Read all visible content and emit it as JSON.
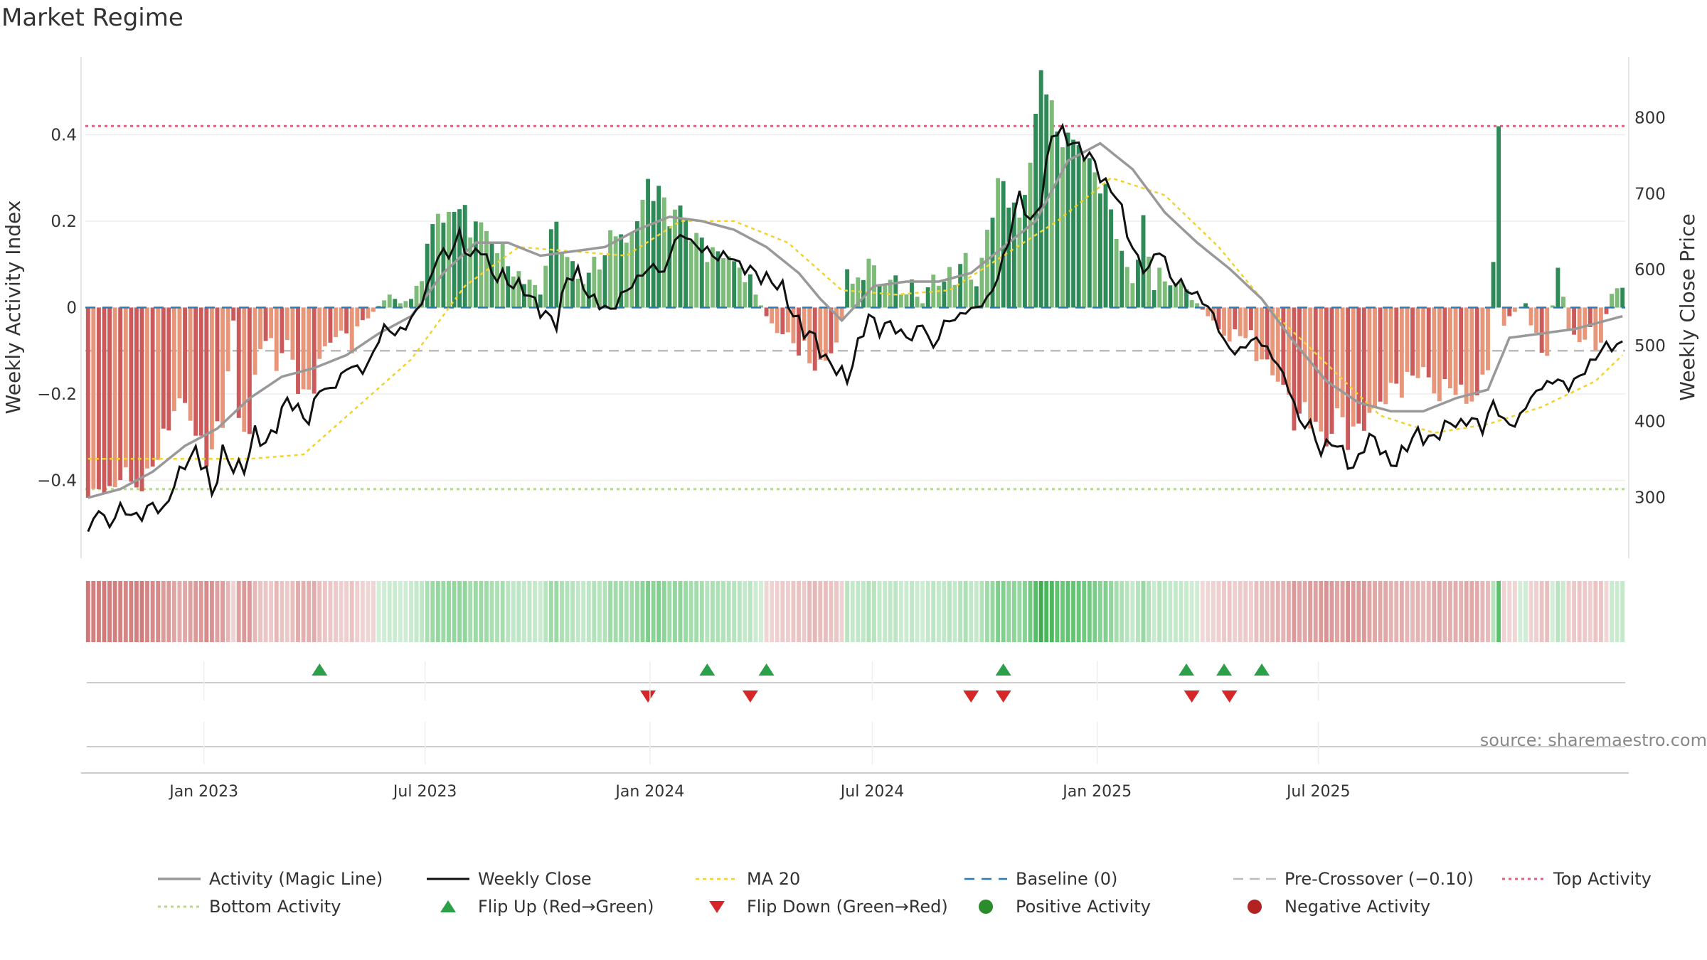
{
  "chart_data": {
    "type": "bar",
    "title": "Market Regime",
    "source": "source: sharemaestro.com",
    "xlabel": "",
    "ylabel": "Weekly Activity Index",
    "y2label": "Weekly Close Price",
    "ylim": [
      -0.58,
      0.58
    ],
    "y2lim": [
      220,
      880
    ],
    "yticks": [
      "0.4",
      "0.2",
      "0",
      "−0.2",
      "−0.4"
    ],
    "yticks_values": [
      0.4,
      0.2,
      0,
      -0.2,
      -0.4
    ],
    "y2ticks": [
      "800",
      "700",
      "600",
      "500",
      "400",
      "300"
    ],
    "y2ticks_values": [
      800,
      700,
      600,
      500,
      400,
      300
    ],
    "x_dates": [
      "Jan 2023",
      "Jul 2023",
      "Jan 2024",
      "Jul 2024",
      "Jan 2025",
      "Jul 2025"
    ],
    "x_ticks": [
      "Jan 2023",
      "Jul 2023",
      "Jan 2024",
      "Jul 2024",
      "Jan 2025",
      "Jul 2025"
    ],
    "x_start": "2022-09-26",
    "week_count": 180,
    "grid": true,
    "legend_position": "bottom",
    "reference_lines": {
      "baseline": 0,
      "pre_crossover": -0.1,
      "top_activity": 0.42,
      "bottom_activity": -0.42
    },
    "activity_keys": [
      [
        0,
        -0.44
      ],
      [
        3,
        -0.41
      ],
      [
        4,
        -0.44
      ],
      [
        6,
        -0.38
      ],
      [
        8,
        -0.4
      ],
      [
        10,
        -0.42
      ],
      [
        12,
        -0.36
      ],
      [
        14,
        -0.31
      ],
      [
        16,
        -0.23
      ],
      [
        18,
        -0.22
      ],
      [
        20,
        -0.29
      ],
      [
        22,
        -0.35
      ],
      [
        23,
        -0.32
      ],
      [
        25,
        -0.26
      ],
      [
        27,
        -0.03
      ],
      [
        28,
        -0.26
      ],
      [
        30,
        -0.29
      ],
      [
        32,
        -0.07
      ],
      [
        34,
        -0.09
      ],
      [
        35,
        -0.13
      ],
      [
        37,
        -0.08
      ],
      [
        39,
        -0.18
      ],
      [
        41,
        -0.21
      ],
      [
        43,
        -0.13
      ],
      [
        45,
        -0.07
      ],
      [
        47,
        -0.06
      ],
      [
        49,
        -0.08
      ],
      [
        51,
        -0.04
      ],
      [
        53,
        -0.01
      ],
      [
        56,
        0.03
      ],
      [
        58,
        0.01
      ],
      [
        60,
        0.02
      ],
      [
        62,
        0.08
      ],
      [
        64,
        0.19
      ],
      [
        65,
        0.22
      ],
      [
        67,
        0.2
      ],
      [
        69,
        0.25
      ],
      [
        71,
        0.17
      ],
      [
        72,
        0.21
      ],
      [
        74,
        0.17
      ],
      [
        76,
        0.14
      ],
      [
        78,
        0.11
      ],
      [
        80,
        0.06
      ],
      [
        82,
        0.07
      ],
      [
        84,
        0.03
      ],
      [
        86,
        0.19
      ],
      [
        88,
        0.15
      ],
      [
        90,
        0.09
      ],
      [
        92,
        0.06
      ],
      [
        94,
        0.1
      ],
      [
        96,
        0.12
      ],
      [
        98,
        0.19
      ],
      [
        100,
        0.14
      ],
      [
        102,
        0.21
      ],
      [
        104,
        0.28
      ],
      [
        106,
        0.27
      ],
      [
        108,
        0.21
      ],
      [
        110,
        0.23
      ],
      [
        112,
        0.17
      ],
      [
        114,
        0.15
      ],
      [
        116,
        0.12
      ],
      [
        118,
        0.13
      ],
      [
        120,
        0.1
      ],
      [
        122,
        0.08
      ],
      [
        124,
        0.03
      ],
      [
        126,
        -0.02
      ],
      [
        128,
        -0.05
      ],
      [
        130,
        -0.07
      ],
      [
        132,
        -0.09
      ],
      [
        134,
        -0.12
      ],
      [
        136,
        -0.14
      ],
      [
        138,
        -0.1
      ],
      [
        140,
        -0.05
      ],
      [
        141,
        0.1
      ],
      [
        143,
        0.04
      ],
      [
        145,
        0.12
      ],
      [
        147,
        0.05
      ],
      [
        149,
        0.07
      ],
      [
        151,
        0.03
      ],
      [
        153,
        0.04
      ],
      [
        155,
        0.01
      ],
      [
        157,
        0.07
      ],
      [
        159,
        0.06
      ],
      [
        161,
        0.08
      ],
      [
        163,
        0.11
      ],
      [
        165,
        0.05
      ],
      [
        167,
        0.17
      ],
      [
        169,
        0.29
      ],
      [
        171,
        0.26
      ],
      [
        173,
        0.2
      ],
      [
        175,
        0.34
      ],
      [
        177,
        0.54
      ],
      [
        178,
        0.52
      ],
      [
        180,
        0.4
      ],
      [
        182,
        0.39
      ],
      [
        184,
        0.38
      ],
      [
        186,
        0.33
      ],
      [
        188,
        0.29
      ],
      [
        190,
        0.23
      ],
      [
        192,
        0.12
      ],
      [
        194,
        0.06
      ],
      [
        196,
        0.19
      ],
      [
        198,
        0.06
      ],
      [
        200,
        0.07
      ],
      [
        202,
        0.05
      ],
      [
        204,
        0.05
      ],
      [
        206,
        0.01
      ],
      [
        208,
        -0.02
      ],
      [
        210,
        -0.04
      ],
      [
        212,
        -0.08
      ],
      [
        214,
        -0.05
      ],
      [
        216,
        -0.08
      ],
      [
        218,
        -0.12
      ],
      [
        220,
        -0.15
      ],
      [
        222,
        -0.18
      ],
      [
        224,
        -0.26
      ],
      [
        226,
        -0.24
      ],
      [
        228,
        -0.27
      ],
      [
        230,
        -0.32
      ],
      [
        232,
        -0.24
      ],
      [
        234,
        -0.3
      ],
      [
        236,
        -0.28
      ],
      [
        238,
        -0.25
      ],
      [
        240,
        -0.22
      ],
      [
        242,
        -0.19
      ],
      [
        244,
        -0.18
      ],
      [
        246,
        -0.16
      ],
      [
        248,
        -0.14
      ],
      [
        250,
        -0.2
      ],
      [
        252,
        -0.19
      ],
      [
        254,
        -0.18
      ],
      [
        256,
        -0.22
      ],
      [
        258,
        -0.2
      ],
      [
        260,
        -0.14
      ],
      [
        262,
        0.39
      ],
      [
        263,
        -0.03
      ],
      [
        265,
        -0.01
      ],
      [
        267,
        0.01
      ],
      [
        269,
        -0.08
      ],
      [
        271,
        -0.1
      ],
      [
        273,
        0.11
      ],
      [
        275,
        -0.06
      ],
      [
        277,
        -0.07
      ],
      [
        279,
        -0.07
      ],
      [
        281,
        -0.08
      ],
      [
        283,
        0.05
      ],
      [
        285,
        0.04
      ]
    ],
    "close_keys": [
      [
        0,
        255
      ],
      [
        2,
        285
      ],
      [
        4,
        262
      ],
      [
        6,
        288
      ],
      [
        8,
        276
      ],
      [
        10,
        276
      ],
      [
        12,
        292
      ],
      [
        14,
        280
      ],
      [
        16,
        318
      ],
      [
        18,
        345
      ],
      [
        20,
        360
      ],
      [
        22,
        335
      ],
      [
        23,
        300
      ],
      [
        25,
        360
      ],
      [
        27,
        340
      ],
      [
        29,
        338
      ],
      [
        31,
        385
      ],
      [
        33,
        370
      ],
      [
        35,
        395
      ],
      [
        37,
        430
      ],
      [
        39,
        415
      ],
      [
        41,
        400
      ],
      [
        43,
        445
      ],
      [
        45,
        440
      ],
      [
        47,
        460
      ],
      [
        49,
        475
      ],
      [
        51,
        465
      ],
      [
        53,
        490
      ],
      [
        55,
        525
      ],
      [
        57,
        515
      ],
      [
        59,
        525
      ],
      [
        61,
        545
      ],
      [
        63,
        575
      ],
      [
        65,
        620
      ],
      [
        67,
        620
      ],
      [
        69,
        645
      ],
      [
        71,
        615
      ],
      [
        73,
        630
      ],
      [
        75,
        595
      ],
      [
        77,
        590
      ],
      [
        79,
        580
      ],
      [
        81,
        575
      ],
      [
        83,
        555
      ],
      [
        85,
        540
      ],
      [
        87,
        530
      ],
      [
        89,
        590
      ],
      [
        91,
        595
      ],
      [
        93,
        565
      ],
      [
        95,
        555
      ],
      [
        97,
        545
      ],
      [
        99,
        565
      ],
      [
        101,
        580
      ],
      [
        103,
        595
      ],
      [
        105,
        605
      ],
      [
        107,
        595
      ],
      [
        109,
        640
      ],
      [
        111,
        645
      ],
      [
        113,
        630
      ],
      [
        115,
        625
      ],
      [
        117,
        615
      ],
      [
        119,
        620
      ],
      [
        121,
        605
      ],
      [
        123,
        600
      ],
      [
        125,
        590
      ],
      [
        127,
        585
      ],
      [
        129,
        575
      ],
      [
        131,
        540
      ],
      [
        133,
        520
      ],
      [
        135,
        510
      ],
      [
        137,
        480
      ],
      [
        139,
        470
      ],
      [
        141,
        455
      ],
      [
        143,
        500
      ],
      [
        145,
        540
      ],
      [
        147,
        520
      ],
      [
        149,
        530
      ],
      [
        151,
        515
      ],
      [
        153,
        510
      ],
      [
        155,
        530
      ],
      [
        157,
        495
      ],
      [
        159,
        530
      ],
      [
        161,
        535
      ],
      [
        163,
        545
      ],
      [
        165,
        550
      ],
      [
        167,
        560
      ],
      [
        169,
        590
      ],
      [
        171,
        640
      ],
      [
        173,
        700
      ],
      [
        175,
        660
      ],
      [
        177,
        690
      ],
      [
        179,
        780
      ],
      [
        181,
        780
      ],
      [
        183,
        765
      ],
      [
        185,
        755
      ],
      [
        187,
        740
      ],
      [
        189,
        710
      ],
      [
        191,
        700
      ],
      [
        193,
        650
      ],
      [
        195,
        610
      ],
      [
        197,
        600
      ],
      [
        199,
        630
      ],
      [
        201,
        590
      ],
      [
        203,
        580
      ],
      [
        205,
        570
      ],
      [
        207,
        560
      ],
      [
        209,
        540
      ],
      [
        211,
        505
      ],
      [
        213,
        490
      ],
      [
        215,
        500
      ],
      [
        217,
        510
      ],
      [
        219,
        495
      ],
      [
        221,
        475
      ],
      [
        223,
        445
      ],
      [
        225,
        400
      ],
      [
        227,
        395
      ],
      [
        229,
        360
      ],
      [
        231,
        375
      ],
      [
        233,
        360
      ],
      [
        235,
        335
      ],
      [
        237,
        370
      ],
      [
        239,
        380
      ],
      [
        241,
        350
      ],
      [
        243,
        345
      ],
      [
        245,
        370
      ],
      [
        247,
        385
      ],
      [
        249,
        375
      ],
      [
        251,
        385
      ],
      [
        253,
        400
      ],
      [
        255,
        395
      ],
      [
        257,
        405
      ],
      [
        259,
        390
      ],
      [
        261,
        425
      ],
      [
        263,
        400
      ],
      [
        265,
        395
      ],
      [
        267,
        420
      ],
      [
        269,
        440
      ],
      [
        271,
        450
      ],
      [
        273,
        455
      ],
      [
        275,
        445
      ],
      [
        277,
        460
      ],
      [
        279,
        475
      ],
      [
        281,
        495
      ],
      [
        283,
        500
      ]
    ],
    "magic_keys": [
      [
        0,
        -0.44
      ],
      [
        6,
        -0.42
      ],
      [
        12,
        -0.38
      ],
      [
        18,
        -0.32
      ],
      [
        24,
        -0.28
      ],
      [
        30,
        -0.21
      ],
      [
        36,
        -0.16
      ],
      [
        42,
        -0.14
      ],
      [
        48,
        -0.11
      ],
      [
        54,
        -0.06
      ],
      [
        60,
        -0.02
      ],
      [
        66,
        0.08
      ],
      [
        72,
        0.15
      ],
      [
        78,
        0.15
      ],
      [
        84,
        0.12
      ],
      [
        90,
        0.13
      ],
      [
        96,
        0.14
      ],
      [
        102,
        0.18
      ],
      [
        108,
        0.21
      ],
      [
        114,
        0.2
      ],
      [
        120,
        0.18
      ],
      [
        126,
        0.14
      ],
      [
        132,
        0.08
      ],
      [
        136,
        0.02
      ],
      [
        140,
        -0.03
      ],
      [
        146,
        0.05
      ],
      [
        152,
        0.06
      ],
      [
        158,
        0.06
      ],
      [
        164,
        0.08
      ],
      [
        170,
        0.14
      ],
      [
        176,
        0.2
      ],
      [
        182,
        0.34
      ],
      [
        188,
        0.38
      ],
      [
        194,
        0.32
      ],
      [
        200,
        0.22
      ],
      [
        206,
        0.15
      ],
      [
        212,
        0.09
      ],
      [
        218,
        0.02
      ],
      [
        224,
        -0.08
      ],
      [
        230,
        -0.17
      ],
      [
        236,
        -0.22
      ],
      [
        242,
        -0.24
      ],
      [
        248,
        -0.24
      ],
      [
        254,
        -0.21
      ],
      [
        260,
        -0.19
      ],
      [
        264,
        -0.07
      ],
      [
        270,
        -0.06
      ],
      [
        276,
        -0.05
      ],
      [
        282,
        -0.03
      ],
      [
        285,
        -0.02
      ]
    ],
    "ma20_keys": [
      [
        0,
        -0.35
      ],
      [
        20,
        -0.35
      ],
      [
        30,
        -0.35
      ],
      [
        40,
        -0.34
      ],
      [
        50,
        -0.23
      ],
      [
        60,
        -0.12
      ],
      [
        70,
        0.05
      ],
      [
        80,
        0.14
      ],
      [
        90,
        0.13
      ],
      [
        100,
        0.12
      ],
      [
        110,
        0.2
      ],
      [
        120,
        0.2
      ],
      [
        130,
        0.15
      ],
      [
        140,
        0.04
      ],
      [
        150,
        0.03
      ],
      [
        160,
        0.04
      ],
      [
        170,
        0.12
      ],
      [
        180,
        0.2
      ],
      [
        190,
        0.3
      ],
      [
        200,
        0.26
      ],
      [
        210,
        0.14
      ],
      [
        220,
        -0.01
      ],
      [
        230,
        -0.13
      ],
      [
        240,
        -0.25
      ],
      [
        250,
        -0.29
      ],
      [
        260,
        -0.27
      ],
      [
        270,
        -0.23
      ],
      [
        280,
        -0.17
      ],
      [
        285,
        -0.11
      ]
    ],
    "flip_up_weeks": [
      43,
      88,
      104,
      124,
      138,
      148,
      166,
      178
    ],
    "flip_down_weeks": [
      85,
      104,
      108,
      140,
      156,
      162,
      168,
      172
    ],
    "flip_up_x": [
      54,
      146,
      162,
      220,
      254,
      262,
      270
    ],
    "flip_down_x": [
      117,
      144,
      200,
      206,
      256,
      264
    ],
    "series": [
      {
        "name": "Activity (Magic Line)",
        "color": "#999999"
      },
      {
        "name": "Weekly Close",
        "color": "#111111"
      },
      {
        "name": "MA 20",
        "color": "#f2d22e"
      },
      {
        "name": "Baseline (0)",
        "color": "#2c7bb6"
      },
      {
        "name": "Pre-Crossover (−0.10)",
        "color": "#bbbbbb"
      },
      {
        "name": "Top Activity",
        "color": "#e06080"
      },
      {
        "name": "Bottom Activity",
        "color": "#b4d88a"
      },
      {
        "name": "Flip Up (Red→Green)",
        "color": "#2ca048"
      },
      {
        "name": "Flip Down (Green→Red)",
        "color": "#d62728"
      },
      {
        "name": "Positive Activity",
        "color": "#2a8c2a"
      },
      {
        "name": "Negative Activity",
        "color": "#b22222"
      }
    ]
  }
}
